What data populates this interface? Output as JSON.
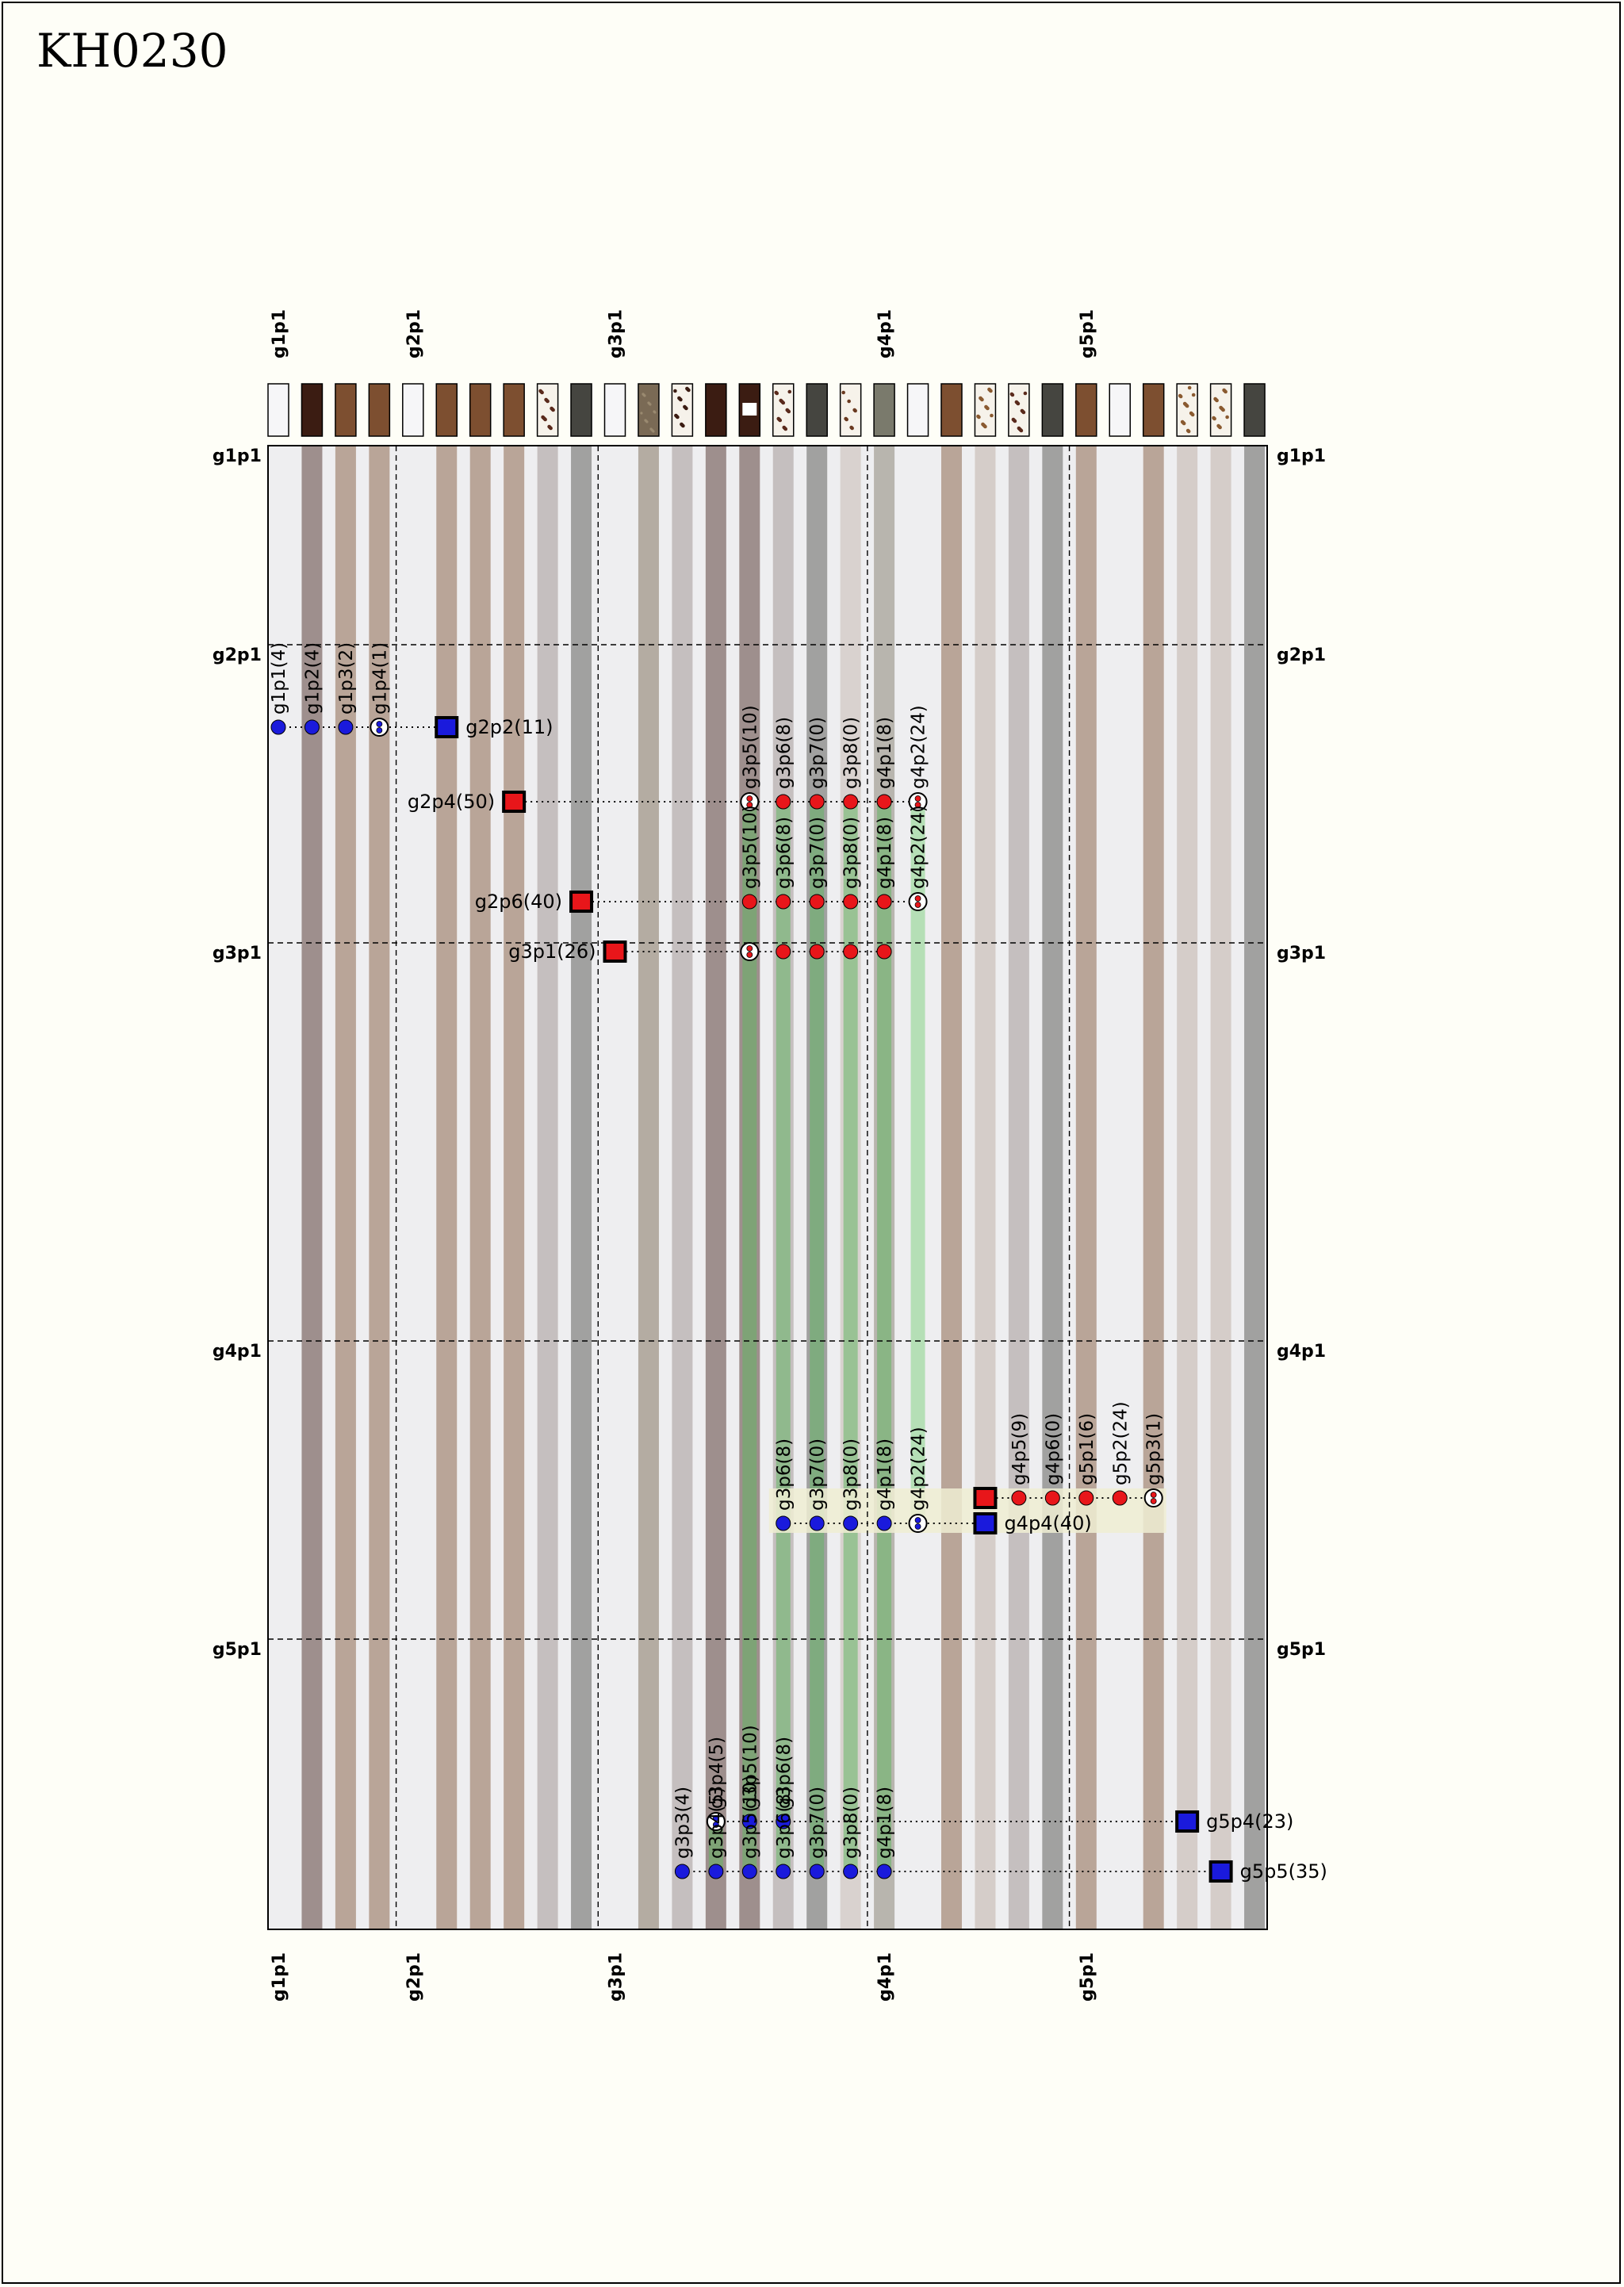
{
  "title": "KH0230",
  "columns": [
    {
      "label": "g1p1",
      "fill": "#f6f6f8",
      "style": "plain",
      "stripe": "#eeeef0"
    },
    {
      "label": "",
      "fill": "#3b1c12",
      "style": "plain",
      "stripe": "#9e8f8d"
    },
    {
      "label": "",
      "fill": "#7d4f30",
      "style": "plain",
      "stripe": "#b9a598"
    },
    {
      "label": "",
      "fill": "#7d4f30",
      "style": "plain",
      "stripe": "#b9a598"
    },
    {
      "label": "g2p1",
      "fill": "#f6f6f8",
      "style": "plain",
      "stripe": "#eeeef0"
    },
    {
      "label": "",
      "fill": "#7d4f30",
      "style": "plain",
      "stripe": "#b9a598"
    },
    {
      "label": "",
      "fill": "#7d4f30",
      "style": "plain",
      "stripe": "#b9a598"
    },
    {
      "label": "",
      "fill": "#7d4f30",
      "style": "plain",
      "stripe": "#b9a598"
    },
    {
      "label": "",
      "fill": "#f6f2ea",
      "style": "dots",
      "dot": "#5a2a1c",
      "stripe": "#c5bfbf"
    },
    {
      "label": "",
      "fill": "#454540",
      "style": "plain",
      "stripe": "#a1a1a0"
    },
    {
      "label": "g3p1",
      "fill": "#f6f6f8",
      "style": "plain",
      "stripe": "#eeeef0"
    },
    {
      "label": "",
      "fill": "#7a6a55",
      "style": "speckle",
      "stripe": "#b4aca2"
    },
    {
      "label": "",
      "fill": "#f6f2ea",
      "style": "dots",
      "dot": "#3b1c12",
      "stripe": "#c5bfbf"
    },
    {
      "label": "",
      "fill": "#3b1c12",
      "style": "plain",
      "stripe": "#9e8f8d"
    },
    {
      "label": "",
      "fill": "#3b1c12",
      "style": "window",
      "stripe": "#9e8f8d"
    },
    {
      "label": "",
      "fill": "#f6f2ea",
      "style": "dots",
      "dot": "#5a2a1c",
      "stripe": "#c5bfbf"
    },
    {
      "label": "",
      "fill": "#454540",
      "style": "plain",
      "stripe": "#a1a1a0"
    },
    {
      "label": "",
      "fill": "#f6f2ea",
      "style": "sparse",
      "dot": "#6a3a20",
      "stripe": "#d9d2cf"
    },
    {
      "label": "g4p1",
      "fill": "#7a7a6c",
      "style": "plain",
      "stripe": "#b8b5ae"
    },
    {
      "label": "",
      "fill": "#f6f6f8",
      "style": "plain",
      "stripe": "#eeeef0"
    },
    {
      "label": "",
      "fill": "#7d4f30",
      "style": "plain",
      "stripe": "#b9a598"
    },
    {
      "label": "",
      "fill": "#f6f2ea",
      "style": "dots",
      "dot": "#8a5a30",
      "stripe": "#d5cdc9"
    },
    {
      "label": "",
      "fill": "#f6f2ea",
      "style": "dots",
      "dot": "#5a2a1c",
      "stripe": "#c5bfbf"
    },
    {
      "label": "",
      "fill": "#454540",
      "style": "plain",
      "stripe": "#a1a1a0"
    },
    {
      "label": "g5p1",
      "fill": "#7d4f30",
      "style": "plain",
      "stripe": "#b9a598"
    },
    {
      "label": "",
      "fill": "#f6f6f8",
      "style": "plain",
      "stripe": "#eeeef0"
    },
    {
      "label": "",
      "fill": "#7d4f30",
      "style": "plain",
      "stripe": "#b9a598"
    },
    {
      "label": "",
      "fill": "#f6f2ea",
      "style": "dots",
      "dot": "#8a5a30",
      "stripe": "#d5cdc9"
    },
    {
      "label": "",
      "fill": "#f6f2ea",
      "style": "dots",
      "dot": "#8a5a30",
      "stripe": "#d5cdc9"
    },
    {
      "label": "",
      "fill": "#454540",
      "style": "plain",
      "stripe": "#a1a1a0"
    }
  ],
  "groups": [
    {
      "label": "g1p1",
      "col": 0,
      "row": 0
    },
    {
      "label": "g2p1",
      "col": 4,
      "row": 1
    },
    {
      "label": "g3p1",
      "col": 10,
      "row": 2
    },
    {
      "label": "g4p1",
      "col": 18,
      "row": 3
    },
    {
      "label": "g5p1",
      "col": 24,
      "row": 4
    }
  ],
  "colors": {
    "red": "#e8161a",
    "blue": "#1a1adc",
    "link": "#000000",
    "green": "#64b464",
    "cream": "#efedd2"
  },
  "legend_note": "",
  "events": [
    {
      "y": 0,
      "nodes": [
        {
          "col": 0,
          "kind": "dot",
          "color": "blue",
          "label": "g1p1(4)"
        },
        {
          "col": 1,
          "kind": "dot",
          "color": "blue",
          "label": "g1p2(4)"
        },
        {
          "col": 2,
          "kind": "dot",
          "color": "blue",
          "label": "g1p3(2)"
        },
        {
          "col": 3,
          "kind": "mixed",
          "color": "blue",
          "label": "g1p4(1)"
        }
      ],
      "square": {
        "col": 5,
        "color": "blue",
        "label": "g2p2(11)",
        "side": "right"
      }
    },
    {
      "y": 1,
      "nodes": [
        {
          "col": 14,
          "kind": "mixed",
          "color": "red",
          "label": "g3p5(10)"
        },
        {
          "col": 15,
          "kind": "dot",
          "color": "red",
          "label": "g3p6(8)"
        },
        {
          "col": 16,
          "kind": "dot",
          "color": "red",
          "label": "g3p7(0)"
        },
        {
          "col": 17,
          "kind": "dot",
          "color": "red",
          "label": "g3p8(0)"
        },
        {
          "col": 18,
          "kind": "dot",
          "color": "red",
          "label": "g4p1(8)"
        },
        {
          "col": 19,
          "kind": "mixed",
          "color": "red",
          "label": "g4p2(24)"
        }
      ],
      "square": {
        "col": 7,
        "color": "red",
        "label": "g2p4(50)",
        "side": "left"
      }
    },
    {
      "y": 2,
      "nodes": [
        {
          "col": 14,
          "kind": "dot",
          "color": "red",
          "label": "g3p5(10)",
          "overlap": true
        },
        {
          "col": 15,
          "kind": "dot",
          "color": "red",
          "label": "g3p6(8)",
          "overlap": true
        },
        {
          "col": 16,
          "kind": "dot",
          "color": "red",
          "label": "g3p7(0)",
          "overlap": true
        },
        {
          "col": 17,
          "kind": "dot",
          "color": "red",
          "label": "g3p8(0)",
          "overlap": true
        },
        {
          "col": 18,
          "kind": "dot",
          "color": "red",
          "label": "g4p1(8)",
          "overlap": true
        },
        {
          "col": 19,
          "kind": "mixed",
          "color": "red",
          "label": "g4p2(24)",
          "overlap": true
        }
      ],
      "square": {
        "col": 9,
        "color": "red",
        "label": "g2p6(40)",
        "side": "left"
      }
    },
    {
      "y": 3,
      "nodes": [
        {
          "col": 14,
          "kind": "mixed",
          "color": "red",
          "label": ""
        },
        {
          "col": 15,
          "kind": "dot",
          "color": "red",
          "label": ""
        },
        {
          "col": 16,
          "kind": "dot",
          "color": "red",
          "label": ""
        },
        {
          "col": 17,
          "kind": "dot",
          "color": "red",
          "label": ""
        },
        {
          "col": 18,
          "kind": "dot",
          "color": "red",
          "label": ""
        }
      ],
      "square": {
        "col": 10,
        "color": "red",
        "label": "g3p1(26)",
        "side": "left"
      }
    },
    {
      "y": 4,
      "nodes": [
        {
          "col": 22,
          "kind": "dot",
          "color": "red",
          "label": "g4p5(9)"
        },
        {
          "col": 23,
          "kind": "dot",
          "color": "red",
          "label": "g4p6(0)"
        },
        {
          "col": 24,
          "kind": "dot",
          "color": "red",
          "label": "g5p1(6)"
        },
        {
          "col": 25,
          "kind": "dot",
          "color": "red",
          "label": "g5p2(24)"
        },
        {
          "col": 26,
          "kind": "mixed",
          "color": "red",
          "label": "g5p3(1)"
        }
      ],
      "square": {
        "col": 21,
        "color": "red",
        "label": "",
        "side": "right"
      }
    },
    {
      "y": 5,
      "nodes": [
        {
          "col": 15,
          "kind": "dot",
          "color": "blue",
          "label": "g3p6(8)"
        },
        {
          "col": 16,
          "kind": "dot",
          "color": "blue",
          "label": "g3p7(0)"
        },
        {
          "col": 17,
          "kind": "dot",
          "color": "blue",
          "label": "g3p8(0)"
        },
        {
          "col": 18,
          "kind": "dot",
          "color": "blue",
          "label": "g4p1(8)"
        },
        {
          "col": 19,
          "kind": "mixed",
          "color": "blue",
          "label": "g4p2(24)"
        }
      ],
      "square": {
        "col": 21,
        "color": "blue",
        "label": "g4p4(40)",
        "side": "right"
      }
    },
    {
      "y": 6,
      "nodes": [
        {
          "col": 13,
          "kind": "mixed",
          "color": "blue",
          "label": "g3p4(5)"
        },
        {
          "col": 14,
          "kind": "dot",
          "color": "blue",
          "label": "g3p5(10)",
          "overlap": true
        },
        {
          "col": 15,
          "kind": "dot",
          "color": "blue",
          "label": "g3p6(8)",
          "overlap": true
        }
      ],
      "square": {
        "col": 27,
        "color": "blue",
        "label": "g5p4(23)",
        "side": "right"
      }
    },
    {
      "y": 7,
      "nodes": [
        {
          "col": 12,
          "kind": "dot",
          "color": "blue",
          "label": "g3p3(4)"
        },
        {
          "col": 13,
          "kind": "dot",
          "color": "blue",
          "label": "g3p4(5)",
          "overlap": true
        },
        {
          "col": 14,
          "kind": "dot",
          "color": "blue",
          "label": "g3p5(10)"
        },
        {
          "col": 15,
          "kind": "dot",
          "color": "blue",
          "label": "g3p6(8)"
        },
        {
          "col": 16,
          "kind": "dot",
          "color": "blue",
          "label": "g3p7(0)"
        },
        {
          "col": 17,
          "kind": "dot",
          "color": "blue",
          "label": "g3p8(0)"
        },
        {
          "col": 18,
          "kind": "dot",
          "color": "blue",
          "label": "g4p1(8)"
        }
      ],
      "square": {
        "col": 28,
        "color": "blue",
        "label": "g5p5(35)",
        "side": "right"
      }
    }
  ]
}
